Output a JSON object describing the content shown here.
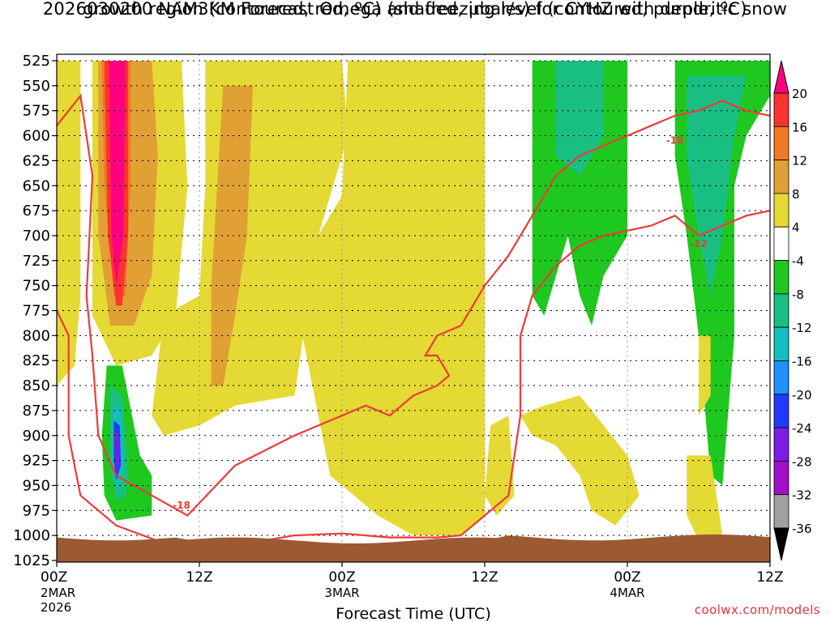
{
  "chart_data": {
    "type": "heatmap",
    "title": {
      "line1": "2026030200 NAM3KM Forecast Omega (shaded, µbar/s) for CYHZ with dendritic snow",
      "line2": "growth region (contoured, red, ºC) and freezing level (contoured, purple, ºC)"
    },
    "xlabel": "Forecast Time (UTC)",
    "x_ticks": [
      {
        "label": "00Z",
        "sub1": "2MAR",
        "sub2": "2026"
      },
      {
        "label": "12Z",
        "sub1": "",
        "sub2": ""
      },
      {
        "label": "00Z",
        "sub1": "3MAR",
        "sub2": ""
      },
      {
        "label": "12Z",
        "sub1": "",
        "sub2": ""
      },
      {
        "label": "00Z",
        "sub1": "4MAR",
        "sub2": ""
      },
      {
        "label": "12Z",
        "sub1": "",
        "sub2": ""
      }
    ],
    "x_range_hours": [
      0,
      60
    ],
    "ylabel": "",
    "y_axis": "pressure_hPa",
    "y_ticks": [
      525,
      550,
      575,
      600,
      625,
      650,
      675,
      700,
      725,
      750,
      775,
      800,
      825,
      850,
      875,
      900,
      925,
      950,
      975,
      1000,
      1025
    ],
    "y_range": [
      525,
      1025
    ],
    "grid": true,
    "colorbar": {
      "labels": [
        "20",
        "16",
        "12",
        "8",
        "4",
        "-4",
        "-8",
        "-12",
        "-16",
        "-20",
        "-24",
        "-28",
        "-32",
        "-36"
      ],
      "colors": [
        "#ff0080",
        "#ff3232",
        "#f07a23",
        "#e1a034",
        "#e5d933",
        "#ffffff",
        "#1ec81e",
        "#19bf82",
        "#10bfbf",
        "#1e90ff",
        "#1e3cff",
        "#7a1ee6",
        "#a010c8",
        "#a0a0a0",
        "#000000"
      ]
    },
    "omega_regions": [
      {
        "value": 6,
        "color": "#e5d933",
        "polygon": [
          [
            0,
            525
          ],
          [
            2,
            525
          ],
          [
            2,
            760
          ],
          [
            1.5,
            830
          ],
          [
            0,
            850
          ]
        ]
      },
      {
        "value": 6,
        "color": "#e5d933",
        "polygon": [
          [
            3,
            525
          ],
          [
            10.5,
            525
          ],
          [
            11,
            650
          ],
          [
            10,
            780
          ],
          [
            8,
            820
          ],
          [
            5,
            830
          ],
          [
            3,
            780
          ]
        ]
      },
      {
        "value": 10,
        "color": "#e1a034",
        "polygon": [
          [
            3.5,
            525
          ],
          [
            8,
            525
          ],
          [
            8.5,
            620
          ],
          [
            8,
            740
          ],
          [
            6.5,
            790
          ],
          [
            4.5,
            790
          ],
          [
            3.5,
            700
          ]
        ]
      },
      {
        "value": 6,
        "color": "#e5d933",
        "polygon": [
          [
            12.5,
            525
          ],
          [
            24,
            525
          ],
          [
            24.5,
            600
          ],
          [
            22,
            700
          ],
          [
            20,
            860
          ],
          [
            15,
            870
          ],
          [
            12,
            890
          ],
          [
            9,
            900
          ],
          [
            8,
            880
          ],
          [
            9,
            780
          ],
          [
            12,
            760
          ],
          [
            12.5,
            650
          ]
        ]
      },
      {
        "value": 10,
        "color": "#e1a034",
        "polygon": [
          [
            14,
            550
          ],
          [
            16.5,
            550
          ],
          [
            16,
            700
          ],
          [
            15,
            780
          ],
          [
            14,
            850
          ],
          [
            13,
            850
          ],
          [
            13,
            750
          ]
        ]
      },
      {
        "value": 14,
        "color": "#f07a23",
        "polygon": [
          [
            3.8,
            525
          ],
          [
            6.2,
            525
          ],
          [
            6.2,
            650
          ],
          [
            5.8,
            760
          ],
          [
            4.8,
            760
          ],
          [
            4,
            650
          ]
        ]
      },
      {
        "value": 18,
        "color": "#ff3232",
        "polygon": [
          [
            4,
            525
          ],
          [
            6,
            525
          ],
          [
            6,
            700
          ],
          [
            5.5,
            770
          ],
          [
            5,
            770
          ],
          [
            4.3,
            700
          ]
        ]
      },
      {
        "value": 22,
        "color": "#ff0080",
        "polygon": [
          [
            4.4,
            525
          ],
          [
            5.8,
            525
          ],
          [
            5.6,
            700
          ],
          [
            5,
            750
          ],
          [
            4.6,
            700
          ]
        ]
      },
      {
        "value": 6,
        "color": "#e5d933",
        "polygon": [
          [
            24.5,
            525
          ],
          [
            36,
            525
          ],
          [
            36,
            980
          ],
          [
            34,
            1000
          ],
          [
            30,
            1000
          ],
          [
            27,
            980
          ],
          [
            25,
            960
          ],
          [
            23,
            940
          ],
          [
            22,
            880
          ],
          [
            21,
            820
          ],
          [
            20,
            760
          ],
          [
            22,
            700
          ],
          [
            24,
            660
          ]
        ]
      },
      {
        "value": -6,
        "color": "#1ec81e",
        "polygon": [
          [
            40,
            525
          ],
          [
            48,
            525
          ],
          [
            48,
            700
          ],
          [
            46,
            740
          ],
          [
            45,
            790
          ],
          [
            44,
            760
          ],
          [
            43,
            700
          ],
          [
            41,
            780
          ],
          [
            40,
            760
          ],
          [
            40,
            620
          ]
        ]
      },
      {
        "value": -10,
        "color": "#19bf82",
        "polygon": [
          [
            42,
            525
          ],
          [
            46,
            525
          ],
          [
            46,
            600
          ],
          [
            44,
            640
          ],
          [
            42,
            620
          ]
        ]
      },
      {
        "value": -6,
        "color": "#1ec81e",
        "polygon": [
          [
            52,
            525
          ],
          [
            60,
            525
          ],
          [
            60,
            560
          ],
          [
            58,
            600
          ],
          [
            57,
            650
          ],
          [
            57,
            800
          ],
          [
            56,
            950
          ],
          [
            55,
            940
          ],
          [
            54,
            800
          ],
          [
            53,
            700
          ],
          [
            52,
            620
          ]
        ]
      },
      {
        "value": -10,
        "color": "#19bf82",
        "polygon": [
          [
            53,
            540
          ],
          [
            58,
            540
          ],
          [
            57,
            600
          ],
          [
            56,
            700
          ],
          [
            55,
            760
          ],
          [
            54,
            700
          ],
          [
            53,
            620
          ]
        ]
      },
      {
        "value": -6,
        "color": "#1ec81e",
        "polygon": [
          [
            4.2,
            830
          ],
          [
            5.5,
            830
          ],
          [
            7,
            920
          ],
          [
            8,
            940
          ],
          [
            8,
            980
          ],
          [
            5,
            985
          ],
          [
            4,
            960
          ],
          [
            3.8,
            900
          ]
        ]
      },
      {
        "value": -10,
        "color": "#19bf82",
        "polygon": [
          [
            4.5,
            850
          ],
          [
            5.5,
            860
          ],
          [
            6,
            930
          ],
          [
            5.8,
            960
          ],
          [
            5,
            965
          ],
          [
            4.5,
            930
          ]
        ]
      },
      {
        "value": -14,
        "color": "#10bfbf",
        "polygon": [
          [
            4.7,
            870
          ],
          [
            5.4,
            875
          ],
          [
            5.6,
            930
          ],
          [
            5.2,
            955
          ],
          [
            4.8,
            940
          ]
        ]
      },
      {
        "value": -26,
        "color": "#1e3cff",
        "polygon": [
          [
            4.8,
            885
          ],
          [
            5.3,
            890
          ],
          [
            5.4,
            930
          ],
          [
            5,
            945
          ],
          [
            4.8,
            925
          ]
        ]
      },
      {
        "value": -30,
        "color": "#7a1ee6",
        "polygon": [
          [
            4.85,
            895
          ],
          [
            5.25,
            900
          ],
          [
            5.3,
            925
          ],
          [
            5,
            940
          ],
          [
            4.9,
            920
          ]
        ]
      },
      {
        "value": 6,
        "color": "#e5d933",
        "polygon": [
          [
            39,
            880
          ],
          [
            41,
            870
          ],
          [
            44,
            860
          ],
          [
            46,
            890
          ],
          [
            48,
            920
          ],
          [
            49,
            960
          ],
          [
            47,
            990
          ],
          [
            45,
            975
          ],
          [
            44,
            940
          ],
          [
            42,
            910
          ],
          [
            40,
            900
          ]
        ]
      },
      {
        "value": 6,
        "color": "#e5d933",
        "polygon": [
          [
            36.5,
            890
          ],
          [
            38,
            880
          ],
          [
            38.5,
            960
          ],
          [
            37,
            980
          ],
          [
            36,
            960
          ]
        ]
      },
      {
        "value": 6,
        "color": "#e5d933",
        "polygon": [
          [
            54,
            800
          ],
          [
            55,
            800
          ],
          [
            55,
            860
          ],
          [
            54,
            880
          ]
        ]
      },
      {
        "value": 6,
        "color": "#e5d933",
        "polygon": [
          [
            53,
            920
          ],
          [
            55,
            920
          ],
          [
            56,
            1000
          ],
          [
            54,
            1005
          ],
          [
            53,
            980
          ]
        ]
      }
    ],
    "dgz_contours": [
      {
        "label": "-18",
        "points": [
          [
            0,
            590
          ],
          [
            2,
            560
          ],
          [
            3,
            640
          ],
          [
            2.5,
            760
          ],
          [
            3,
            820
          ],
          [
            3.5,
            900
          ],
          [
            5,
            940
          ],
          [
            8,
            960
          ],
          [
            11,
            980
          ],
          [
            15,
            930
          ],
          [
            20,
            900
          ],
          [
            24,
            880
          ],
          [
            26,
            870
          ],
          [
            28,
            880
          ],
          [
            30,
            860
          ],
          [
            32,
            850
          ],
          [
            33,
            840
          ],
          [
            32,
            820
          ],
          [
            31,
            820
          ],
          [
            32,
            800
          ],
          [
            34,
            790
          ],
          [
            36,
            750
          ],
          [
            38,
            720
          ],
          [
            40,
            680
          ],
          [
            42,
            640
          ],
          [
            44,
            620
          ],
          [
            46,
            610
          ],
          [
            48,
            600
          ],
          [
            50,
            590
          ],
          [
            52,
            580
          ],
          [
            54,
            575
          ],
          [
            56,
            565
          ],
          [
            58,
            575
          ],
          [
            60,
            580
          ]
        ]
      },
      {
        "label": "-12",
        "points": [
          [
            0,
            775
          ],
          [
            1,
            800
          ],
          [
            1,
            900
          ],
          [
            2,
            960
          ],
          [
            5,
            990
          ],
          [
            10,
            1012
          ],
          [
            14,
            1012
          ],
          [
            20,
            1000
          ],
          [
            24,
            998
          ],
          [
            26,
            1000
          ],
          [
            28,
            1002
          ],
          [
            30,
            1002
          ],
          [
            32,
            1002
          ],
          [
            34,
            1000
          ],
          [
            36,
            980
          ],
          [
            38,
            960
          ],
          [
            39,
            880
          ],
          [
            39,
            800
          ],
          [
            40,
            760
          ],
          [
            42,
            730
          ],
          [
            44,
            710
          ],
          [
            46,
            700
          ],
          [
            48,
            695
          ],
          [
            50,
            690
          ],
          [
            52,
            680
          ],
          [
            54,
            700
          ],
          [
            56,
            690
          ],
          [
            58,
            680
          ],
          [
            60,
            675
          ]
        ]
      }
    ]
  },
  "credit": "coolwx.com/models"
}
